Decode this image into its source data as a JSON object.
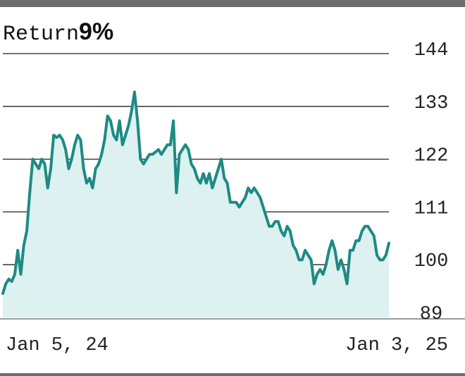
{
  "chart_data": {
    "type": "area",
    "title": "Return",
    "highlight": "9%",
    "xlabel": "",
    "ylabel": "",
    "x_tick_labels": [
      "Jan 5, 24",
      "Jan 3, 25"
    ],
    "y_ticks": [
      89,
      100,
      111,
      122,
      133,
      144
    ],
    "ylim": [
      89,
      144
    ],
    "grid": true,
    "line_color": "#1e8a84",
    "fill_color": "#dcf1f0",
    "series": [
      {
        "values": [
          94,
          96,
          97,
          96.5,
          98,
          103,
          98,
          104,
          107,
          115,
          122,
          121,
          120,
          122,
          121,
          116,
          120,
          127,
          126.5,
          127,
          126,
          124,
          120,
          122,
          125,
          127,
          126,
          120,
          117,
          118,
          116,
          120,
          121,
          123,
          126,
          131,
          130,
          127,
          126,
          130,
          125,
          127,
          129,
          132,
          136,
          130,
          122,
          121,
          122,
          123,
          123,
          123.5,
          124,
          123,
          124,
          125,
          125,
          130,
          115,
          123,
          124,
          125,
          124,
          121,
          120,
          118,
          117,
          119,
          117,
          119,
          116,
          118,
          120,
          122,
          118,
          117,
          113,
          113,
          113,
          112,
          113,
          114,
          116,
          115,
          116,
          115,
          114,
          112,
          110,
          108,
          108,
          109,
          109,
          107,
          106,
          108,
          107,
          104,
          103,
          101,
          101,
          103,
          102,
          101,
          96,
          98,
          99,
          98,
          100,
          103,
          105,
          103,
          99,
          101,
          99,
          96,
          103,
          103,
          105,
          105,
          107,
          108,
          108,
          107,
          106,
          102,
          101,
          101,
          102,
          104.5
        ]
      }
    ]
  }
}
